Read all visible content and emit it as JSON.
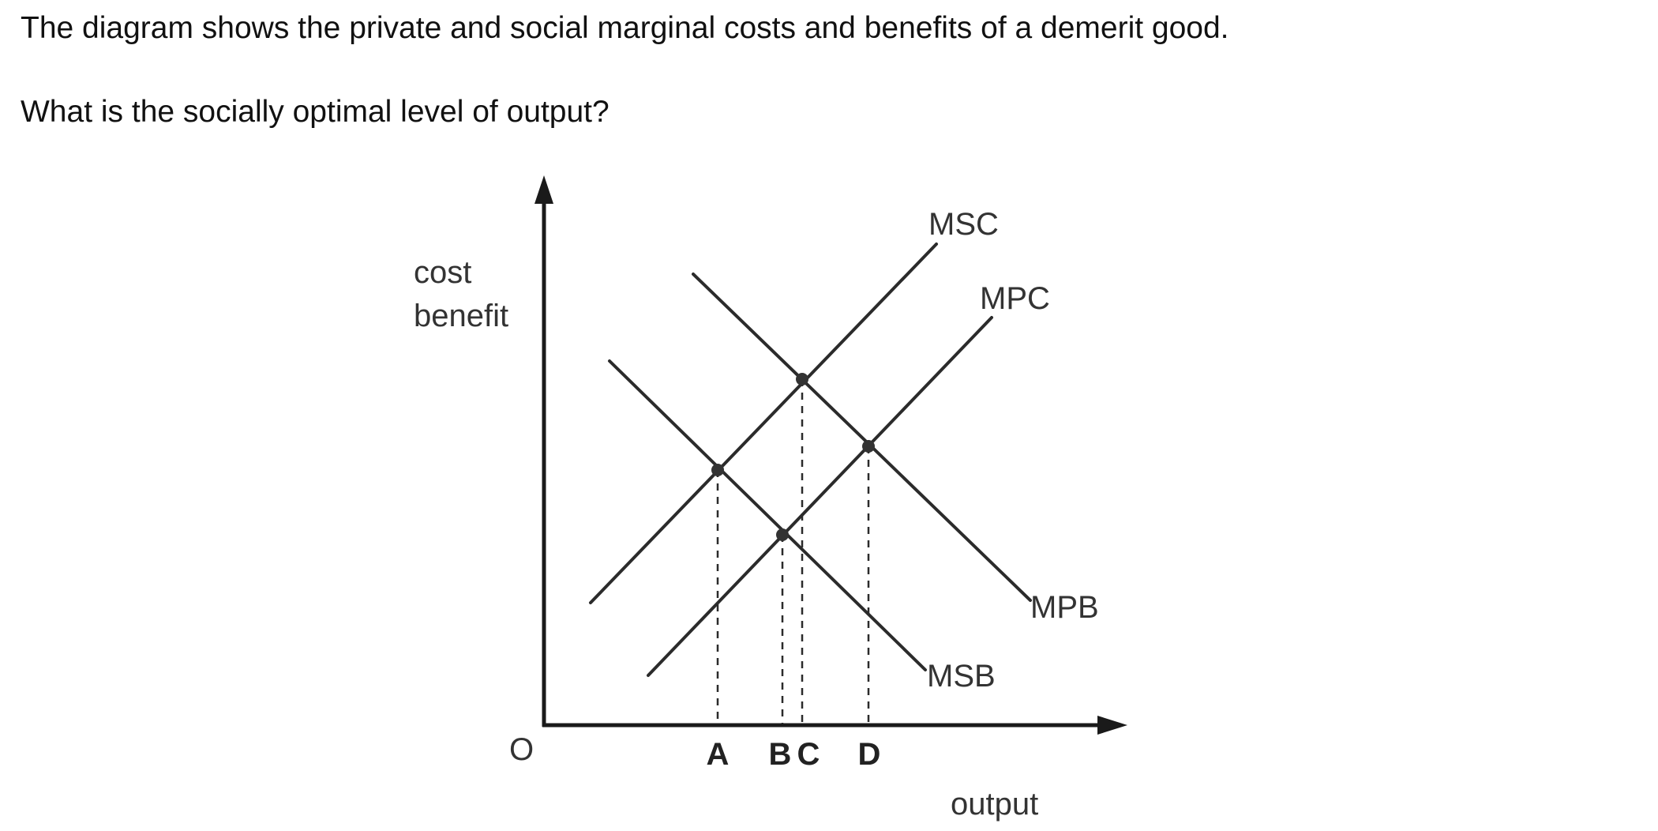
{
  "question": {
    "line1": "The diagram shows the private and social marginal costs and benefits of a demerit good.",
    "line2": "What is the socially optimal level of output?"
  },
  "diagram": {
    "y_axis_label": [
      "cost",
      "benefit"
    ],
    "x_axis_label": "output",
    "origin_label": "O",
    "curves": {
      "msc": "MSC",
      "mpc": "MPC",
      "mpb": "MPB",
      "msb": "MSB"
    },
    "points": {
      "a": "A",
      "b": "B",
      "c": "C",
      "d": "D"
    },
    "colors": {
      "line": "#2b2b2b",
      "axis": "#1a1a1a",
      "dot": "#333333"
    }
  }
}
